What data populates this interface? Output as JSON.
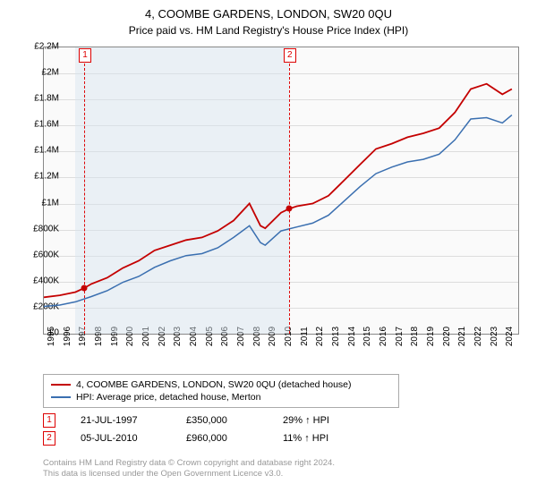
{
  "title": "4, COOMBE GARDENS, LONDON, SW20 0QU",
  "subtitle": "Price paid vs. HM Land Registry's House Price Index (HPI)",
  "chart": {
    "type": "line",
    "background_color": "#fafafa",
    "grid_color": "#dddddd",
    "axis_color": "#888888",
    "label_fontsize": 10,
    "x": {
      "min": 1995,
      "max": 2025,
      "ticks": [
        1995,
        1996,
        1997,
        1998,
        1999,
        2000,
        2001,
        2002,
        2003,
        2004,
        2005,
        2006,
        2007,
        2008,
        2009,
        2010,
        2011,
        2012,
        2013,
        2014,
        2015,
        2016,
        2017,
        2018,
        2019,
        2020,
        2021,
        2022,
        2023,
        2024
      ]
    },
    "y": {
      "min": 0,
      "max": 2200000,
      "prefix": "£",
      "ticks": [
        0,
        200000,
        400000,
        600000,
        800000,
        1000000,
        1200000,
        1400000,
        1600000,
        1800000,
        2000000,
        2200000
      ],
      "tick_labels": [
        "£0",
        "£200K",
        "£400K",
        "£600K",
        "£800K",
        "£1M",
        "£1.2M",
        "£1.4M",
        "£1.6M",
        "£1.8M",
        "£2M",
        "£2.2M"
      ]
    },
    "shading": [
      {
        "x_from": 1997.0,
        "x_to": 2010.5,
        "color": "#d6e4f0"
      }
    ],
    "series": [
      {
        "name": "4, COOMBE GARDENS, LONDON, SW20 0QU (detached house)",
        "color": "#c40000",
        "line_width": 1.8,
        "x": [
          1995,
          1996,
          1997,
          1997.55,
          1998,
          1999,
          2000,
          2001,
          2002,
          2003,
          2004,
          2005,
          2006,
          2007,
          2008,
          2008.7,
          2009,
          2010,
          2010.5,
          2011,
          2012,
          2013,
          2014,
          2015,
          2016,
          2017,
          2018,
          2019,
          2020,
          2021,
          2022,
          2023,
          2024,
          2024.6
        ],
        "y": [
          280000,
          295000,
          320000,
          350000,
          382000,
          430000,
          505000,
          560000,
          640000,
          680000,
          720000,
          740000,
          790000,
          870000,
          1000000,
          830000,
          810000,
          930000,
          960000,
          980000,
          1000000,
          1060000,
          1180000,
          1300000,
          1420000,
          1460000,
          1510000,
          1540000,
          1580000,
          1700000,
          1880000,
          1920000,
          1840000,
          1880000
        ]
      },
      {
        "name": "HPI: Average price, detached house, Merton",
        "color": "#3a6fb0",
        "line_width": 1.5,
        "x": [
          1995,
          1996,
          1997,
          1998,
          1999,
          2000,
          2001,
          2002,
          2003,
          2004,
          2005,
          2006,
          2007,
          2008,
          2008.7,
          2009,
          2010,
          2011,
          2012,
          2013,
          2014,
          2015,
          2016,
          2017,
          2018,
          2019,
          2020,
          2021,
          2022,
          2023,
          2024,
          2024.6
        ],
        "y": [
          210000,
          220000,
          245000,
          285000,
          330000,
          395000,
          440000,
          510000,
          560000,
          600000,
          615000,
          660000,
          740000,
          830000,
          700000,
          680000,
          790000,
          820000,
          850000,
          910000,
          1020000,
          1130000,
          1230000,
          1280000,
          1320000,
          1340000,
          1380000,
          1490000,
          1650000,
          1660000,
          1620000,
          1680000
        ]
      }
    ],
    "markers": [
      {
        "id": "1",
        "x": 1997.55,
        "y": 350000
      },
      {
        "id": "2",
        "x": 2010.5,
        "y": 960000
      }
    ]
  },
  "legend": {
    "items": [
      {
        "color": "#c40000",
        "label": "4, COOMBE GARDENS, LONDON, SW20 0QU (detached house)"
      },
      {
        "color": "#3a6fb0",
        "label": "HPI: Average price, detached house, Merton"
      }
    ]
  },
  "sales": [
    {
      "id": "1",
      "date": "21-JUL-1997",
      "price": "£350,000",
      "delta": "29% ↑ HPI"
    },
    {
      "id": "2",
      "date": "05-JUL-2010",
      "price": "£960,000",
      "delta": "11% ↑ HPI"
    }
  ],
  "footer": {
    "line1": "Contains HM Land Registry data © Crown copyright and database right 2024.",
    "line2": "This data is licensed under the Open Government Licence v3.0."
  }
}
